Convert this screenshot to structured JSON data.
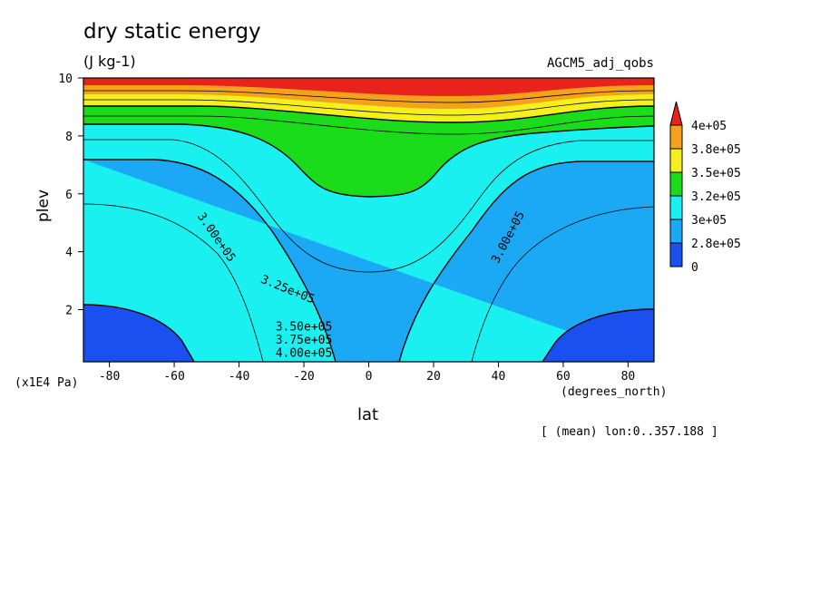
{
  "chart_data": {
    "type": "heatmap",
    "title": "dry static energy",
    "units": "(J kg-1)",
    "dataset_label": "AGCM5_adj_qobs",
    "xlabel": "lat",
    "ylabel": "plev",
    "x_units": "(degrees_north)",
    "y_units": "(x1E4 Pa)",
    "averaging_note": "[ (mean) lon:0..357.188 ]",
    "xlim": [
      -88,
      88
    ],
    "ylim": [
      10,
      0.2
    ],
    "x_ticks": [
      "-80",
      "-60",
      "-40",
      "-20",
      "0",
      "20",
      "40",
      "60",
      "80"
    ],
    "y_ticks": [
      "2",
      "4",
      "6",
      "8",
      "10"
    ],
    "levels_colorbar": [
      {
        "label": "4e+05",
        "color": "#e8231b"
      },
      {
        "label": "3.8e+05",
        "color": "#f5a21b"
      },
      {
        "label": "3.5e+05",
        "color": "#f5f01b"
      },
      {
        "label": "3.2e+05",
        "color": "#1bdc1b"
      },
      {
        "label": "3e+05",
        "color": "#1bf0f0"
      },
      {
        "label": "2.8e+05",
        "color": "#1ba8f5"
      },
      {
        "label": "0",
        "color": "#1b50f0"
      }
    ],
    "contour_labels": [
      {
        "text": "4.00e+05",
        "at_lat": -20,
        "at_plev": 0.5
      },
      {
        "text": "3.75e+05",
        "at_lat": -20,
        "at_plev": 0.95
      },
      {
        "text": "3.50e+05",
        "at_lat": -20,
        "at_plev": 1.4
      },
      {
        "text": "3.25e+05",
        "at_lat": -25,
        "at_plev": 2.7
      },
      {
        "text": "3.00e+05",
        "at_lat": -47,
        "at_plev": 4.5
      },
      {
        "text": "3.00e+05",
        "at_lat": 43,
        "at_plev": 4.5
      }
    ],
    "grid": false
  }
}
